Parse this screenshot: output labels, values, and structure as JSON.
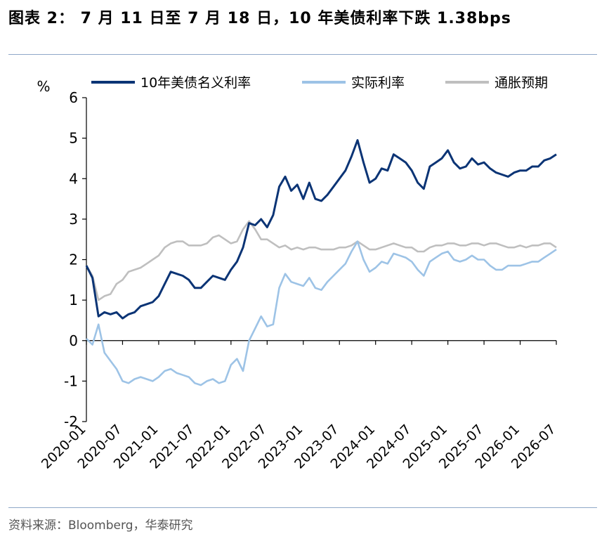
{
  "title": "图表 2：  7 月 11 日至 7 月 18 日，10 年美债利率下跌 1.38bps",
  "source": "资料来源：Bloomberg，华泰研究",
  "chart_data": {
    "type": "line",
    "ylabel": "%",
    "ylim": [
      -2,
      6
    ],
    "y_ticks": [
      "6",
      "5",
      "4",
      "3",
      "2",
      "1",
      "0",
      "-1",
      "-2"
    ],
    "x_ticks": [
      "2020-01",
      "2020-07",
      "2021-01",
      "2021-07",
      "2022-01",
      "2022-07",
      "2023-01",
      "2023-07",
      "2024-01",
      "2024-07",
      "2025-01",
      "2025-07",
      "2026-01",
      "2026-07"
    ],
    "legend_position": "top",
    "x": [
      "2020-01",
      "2020-02",
      "2020-03",
      "2020-04",
      "2020-05",
      "2020-06",
      "2020-07",
      "2020-08",
      "2020-09",
      "2020-10",
      "2020-11",
      "2020-12",
      "2021-01",
      "2021-02",
      "2021-03",
      "2021-04",
      "2021-05",
      "2021-06",
      "2021-07",
      "2021-08",
      "2021-09",
      "2021-10",
      "2021-11",
      "2021-12",
      "2022-01",
      "2022-02",
      "2022-03",
      "2022-04",
      "2022-05",
      "2022-06",
      "2022-07",
      "2022-08",
      "2022-09",
      "2022-10",
      "2022-11",
      "2022-12",
      "2023-01",
      "2023-02",
      "2023-03",
      "2023-04",
      "2023-05",
      "2023-06",
      "2023-07",
      "2023-08",
      "2023-09",
      "2023-10",
      "2023-11",
      "2023-12",
      "2024-01",
      "2024-02",
      "2024-03",
      "2024-04",
      "2024-05",
      "2024-06",
      "2024-07",
      "2024-08",
      "2024-09",
      "2024-10",
      "2024-11",
      "2024-12",
      "2025-01",
      "2025-02",
      "2025-03",
      "2025-04",
      "2025-05",
      "2025-06",
      "2025-07",
      "2025-08",
      "2025-09",
      "2025-10",
      "2025-11",
      "2025-12",
      "2026-01",
      "2026-02",
      "2026-03",
      "2026-04",
      "2026-05",
      "2026-06",
      "2026-07"
    ],
    "series": [
      {
        "name": "10年美债名义利率",
        "color": "#0b3475",
        "values": [
          1.85,
          1.55,
          0.6,
          0.7,
          0.65,
          0.7,
          0.55,
          0.65,
          0.7,
          0.85,
          0.9,
          0.95,
          1.1,
          1.4,
          1.7,
          1.65,
          1.6,
          1.5,
          1.3,
          1.3,
          1.45,
          1.6,
          1.55,
          1.5,
          1.75,
          1.95,
          2.3,
          2.9,
          2.85,
          3.0,
          2.8,
          3.1,
          3.8,
          4.05,
          3.7,
          3.85,
          3.5,
          3.9,
          3.5,
          3.45,
          3.6,
          3.8,
          4.0,
          4.2,
          4.55,
          4.95,
          4.4,
          3.9,
          4.0,
          4.25,
          4.2,
          4.6,
          4.5,
          4.4,
          4.2,
          3.9,
          3.75,
          4.3,
          4.4,
          4.5,
          4.7,
          4.4,
          4.25,
          4.3,
          4.5,
          4.35,
          4.4,
          4.25,
          4.15,
          4.1,
          4.05,
          4.15,
          4.2,
          4.2,
          4.3,
          4.3,
          4.45,
          4.5,
          4.6
        ]
      },
      {
        "name": "实际利率",
        "color": "#9dc3e6",
        "values": [
          0.05,
          -0.1,
          0.4,
          -0.3,
          -0.5,
          -0.7,
          -1.0,
          -1.05,
          -0.95,
          -0.9,
          -0.95,
          -1.0,
          -0.9,
          -0.75,
          -0.7,
          -0.8,
          -0.85,
          -0.9,
          -1.05,
          -1.1,
          -1.0,
          -0.95,
          -1.05,
          -1.0,
          -0.6,
          -0.45,
          -0.75,
          0.0,
          0.3,
          0.6,
          0.35,
          0.4,
          1.3,
          1.65,
          1.45,
          1.4,
          1.35,
          1.55,
          1.3,
          1.25,
          1.45,
          1.6,
          1.75,
          1.9,
          2.2,
          2.45,
          2.0,
          1.7,
          1.8,
          1.95,
          1.9,
          2.15,
          2.1,
          2.05,
          1.95,
          1.75,
          1.6,
          1.95,
          2.05,
          2.15,
          2.2,
          2.0,
          1.95,
          2.0,
          2.1,
          2.0,
          2.0,
          1.85,
          1.75,
          1.75,
          1.85,
          1.85,
          1.85,
          1.9,
          1.95,
          1.95,
          2.05,
          2.15,
          2.25
        ]
      },
      {
        "name": "通胀预期",
        "color": "#bfbfbf",
        "values": [
          1.85,
          1.6,
          1.0,
          1.1,
          1.15,
          1.4,
          1.5,
          1.7,
          1.75,
          1.8,
          1.9,
          2.0,
          2.1,
          2.3,
          2.4,
          2.45,
          2.45,
          2.35,
          2.35,
          2.35,
          2.4,
          2.55,
          2.6,
          2.5,
          2.4,
          2.45,
          2.75,
          2.95,
          2.75,
          2.5,
          2.5,
          2.4,
          2.3,
          2.35,
          2.25,
          2.3,
          2.25,
          2.3,
          2.3,
          2.25,
          2.25,
          2.25,
          2.3,
          2.3,
          2.35,
          2.45,
          2.35,
          2.25,
          2.25,
          2.3,
          2.35,
          2.4,
          2.35,
          2.3,
          2.3,
          2.2,
          2.2,
          2.3,
          2.35,
          2.35,
          2.4,
          2.4,
          2.35,
          2.35,
          2.4,
          2.4,
          2.35,
          2.4,
          2.4,
          2.35,
          2.3,
          2.3,
          2.35,
          2.3,
          2.35,
          2.35,
          2.4,
          2.4,
          2.3
        ]
      }
    ]
  }
}
